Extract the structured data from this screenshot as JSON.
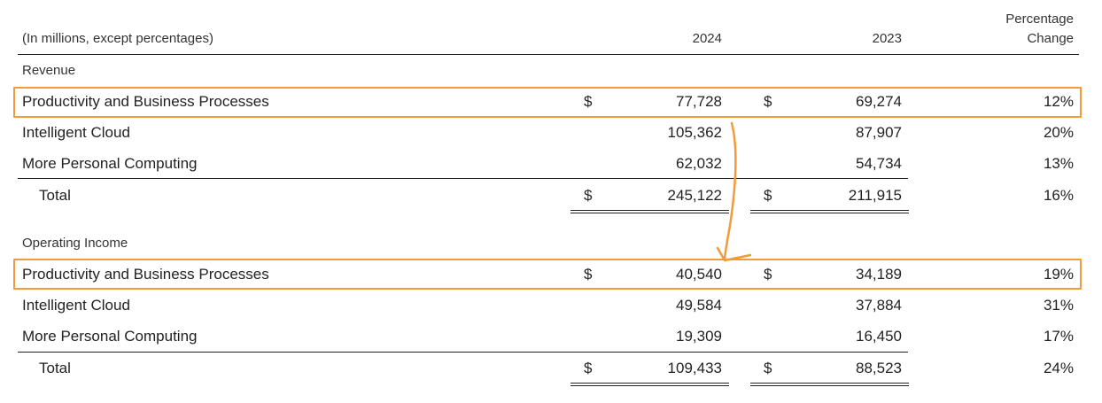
{
  "table": {
    "header": {
      "units": "(In millions, except percentages)",
      "col_2024": "2024",
      "col_2023": "2023",
      "pct_line1": "Percentage",
      "pct_line2": "Change"
    },
    "currency_symbol": "$",
    "revenue": {
      "section_label": "Revenue",
      "rows": [
        {
          "label": "Productivity and Business Processes",
          "v2024": "77,728",
          "v2023": "69,274",
          "pct": "12%"
        },
        {
          "label": "Intelligent Cloud",
          "v2024": "105,362",
          "v2023": "87,907",
          "pct": "20%"
        },
        {
          "label": "More Personal Computing",
          "v2024": "62,032",
          "v2023": "54,734",
          "pct": "13%"
        }
      ],
      "total": {
        "label": "Total",
        "v2024": "245,122",
        "v2023": "211,915",
        "pct": "16%"
      }
    },
    "operating_income": {
      "section_label": "Operating Income",
      "rows": [
        {
          "label": "Productivity and Business Processes",
          "v2024": "40,540",
          "v2023": "34,189",
          "pct": "19%"
        },
        {
          "label": "Intelligent Cloud",
          "v2024": "49,584",
          "v2023": "37,884",
          "pct": "31%"
        },
        {
          "label": "More Personal Computing",
          "v2024": "19,309",
          "v2023": "16,450",
          "pct": "17%"
        }
      ],
      "total": {
        "label": "Total",
        "v2024": "109,433",
        "v2023": "88,523",
        "pct": "24%"
      }
    }
  },
  "annotation": {
    "highlight_color": "#f39a3a"
  }
}
